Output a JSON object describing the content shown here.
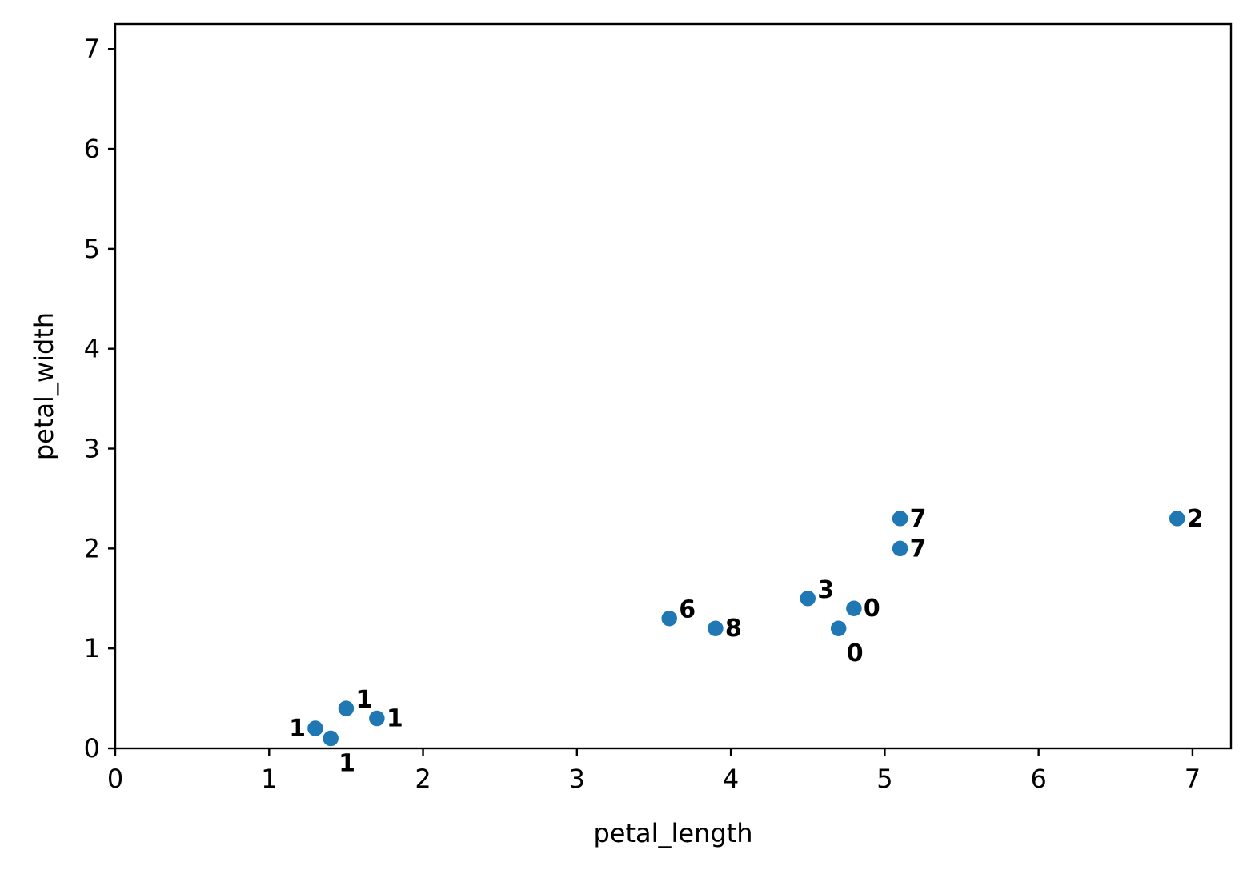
{
  "chart_data": {
    "type": "scatter",
    "title": "",
    "xlabel": "petal_length",
    "ylabel": "petal_width",
    "xlim": [
      0,
      7.25
    ],
    "ylim": [
      0,
      7.25
    ],
    "xticks": [
      "0",
      "1",
      "2",
      "3",
      "4",
      "5",
      "6",
      "7"
    ],
    "yticks": [
      "0",
      "1",
      "2",
      "3",
      "4",
      "5",
      "6",
      "7"
    ],
    "grid": false,
    "point_color": "#1f77b4",
    "points": [
      {
        "x": 1.3,
        "y": 0.2,
        "label": "1",
        "label_pos": "left"
      },
      {
        "x": 1.4,
        "y": 0.1,
        "label": "1",
        "label_pos": "below-right"
      },
      {
        "x": 1.5,
        "y": 0.4,
        "label": "1",
        "label_pos": "upper-right"
      },
      {
        "x": 1.7,
        "y": 0.3,
        "label": "1",
        "label_pos": "right"
      },
      {
        "x": 3.6,
        "y": 1.3,
        "label": "6",
        "label_pos": "upper-right"
      },
      {
        "x": 3.9,
        "y": 1.2,
        "label": "8",
        "label_pos": "right"
      },
      {
        "x": 4.5,
        "y": 1.5,
        "label": "3",
        "label_pos": "upper-right"
      },
      {
        "x": 4.7,
        "y": 1.2,
        "label": "0",
        "label_pos": "below-right"
      },
      {
        "x": 4.8,
        "y": 1.4,
        "label": "0",
        "label_pos": "right"
      },
      {
        "x": 5.1,
        "y": 2.0,
        "label": "7",
        "label_pos": "right"
      },
      {
        "x": 5.1,
        "y": 2.3,
        "label": "7",
        "label_pos": "right"
      },
      {
        "x": 6.9,
        "y": 2.3,
        "label": "2",
        "label_pos": "right"
      }
    ]
  }
}
